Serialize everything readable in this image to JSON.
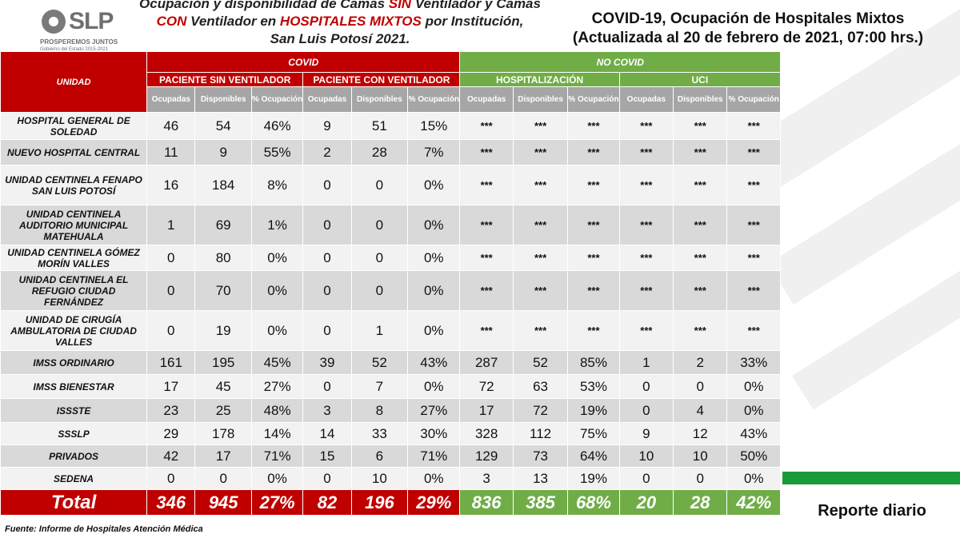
{
  "header": {
    "logo_name": "SLP",
    "logo_slogan": "PROSPEREMOS JUNTOS",
    "logo_gov": "Gobierno del Estado 2015-2021",
    "subtitle_parts": {
      "p1": "Ocupación y disponibilidad de Camas ",
      "sin": "SIN",
      "p2": " Ventilador y Camas",
      "con": "CON",
      "p3": " Ventilador en ",
      "hosp": "HOSPITALES MIXTOS",
      "p4": " por Institución,",
      "p5": "San Luis Potosí 2021."
    },
    "title_line1": "COVID-19, Ocupación de Hospitales Mixtos",
    "title_line2": "(Actualizada al 20 de febrero de 2021, 07:00 hrs.)"
  },
  "table": {
    "unit_header": "UNIDAD",
    "covid_label": "COVID",
    "nocovid_label": "NO COVID",
    "groups": [
      "PACIENTE SIN VENTILADOR",
      "PACIENTE CON VENTILADOR",
      "HOSPITALIZACIÓN",
      "UCI"
    ],
    "col_occ": "Ocupadas",
    "col_disp": "Disponibles",
    "col_pct": "% Ocupación",
    "rows": [
      {
        "name": "HOSPITAL GENERAL DE SOLEDAD",
        "v": [
          "46",
          "54",
          "46%",
          "9",
          "51",
          "15%",
          "***",
          "***",
          "***",
          "***",
          "***",
          "***"
        ]
      },
      {
        "name": "NUEVO HOSPITAL CENTRAL",
        "v": [
          "11",
          "9",
          "55%",
          "2",
          "28",
          "7%",
          "***",
          "***",
          "***",
          "***",
          "***",
          "***"
        ]
      },
      {
        "name": "UNIDAD CENTINELA FENAPO SAN LUIS POTOSÍ",
        "v": [
          "16",
          "184",
          "8%",
          "0",
          "0",
          "0%",
          "***",
          "***",
          "***",
          "***",
          "***",
          "***"
        ]
      },
      {
        "name": "UNIDAD CENTINELA AUDITORIO MUNICIPAL MATEHUALA",
        "v": [
          "1",
          "69",
          "1%",
          "0",
          "0",
          "0%",
          "***",
          "***",
          "***",
          "***",
          "***",
          "***"
        ]
      },
      {
        "name": "UNIDAD CENTINELA GÓMEZ MORÍN VALLES",
        "v": [
          "0",
          "80",
          "0%",
          "0",
          "0",
          "0%",
          "***",
          "***",
          "***",
          "***",
          "***",
          "***"
        ]
      },
      {
        "name": "UNIDAD CENTINELA EL REFUGIO CIUDAD FERNÁNDEZ",
        "v": [
          "0",
          "70",
          "0%",
          "0",
          "0",
          "0%",
          "***",
          "***",
          "***",
          "***",
          "***",
          "***"
        ]
      },
      {
        "name": "UNIDAD DE CIRUGÍA AMBULATORIA DE CIUDAD VALLES",
        "v": [
          "0",
          "19",
          "0%",
          "0",
          "1",
          "0%",
          "***",
          "***",
          "***",
          "***",
          "***",
          "***"
        ]
      },
      {
        "name": "IMSS ORDINARIO",
        "v": [
          "161",
          "195",
          "45%",
          "39",
          "52",
          "43%",
          "287",
          "52",
          "85%",
          "1",
          "2",
          "33%"
        ]
      },
      {
        "name": "IMSS BIENESTAR",
        "v": [
          "17",
          "45",
          "27%",
          "0",
          "7",
          "0%",
          "72",
          "63",
          "53%",
          "0",
          "0",
          "0%"
        ]
      },
      {
        "name": "ISSSTE",
        "v": [
          "23",
          "25",
          "48%",
          "3",
          "8",
          "27%",
          "17",
          "72",
          "19%",
          "0",
          "4",
          "0%"
        ]
      },
      {
        "name": "SSSLP",
        "v": [
          "29",
          "178",
          "14%",
          "14",
          "33",
          "30%",
          "328",
          "112",
          "75%",
          "9",
          "12",
          "43%"
        ]
      },
      {
        "name": "PRIVADOS",
        "v": [
          "42",
          "17",
          "71%",
          "15",
          "6",
          "71%",
          "129",
          "73",
          "64%",
          "10",
          "10",
          "50%"
        ]
      },
      {
        "name": "SEDENA",
        "v": [
          "0",
          "0",
          "0%",
          "0",
          "10",
          "0%",
          "3",
          "13",
          "19%",
          "0",
          "0",
          "0%"
        ]
      }
    ],
    "total": {
      "label": "Total",
      "v": [
        "346",
        "945",
        "27%",
        "82",
        "196",
        "29%",
        "836",
        "385",
        "68%",
        "20",
        "28",
        "42%"
      ]
    }
  },
  "footer": {
    "reporte": "Reporte diario",
    "fuente": "Fuente: Informe de Hospitales Atención Médica"
  },
  "colors": {
    "covid_red": "#c00000",
    "nocovid_green": "#70ad47",
    "header_gray": "#a6a6a6",
    "accent_bar": "#1a9a3a"
  }
}
